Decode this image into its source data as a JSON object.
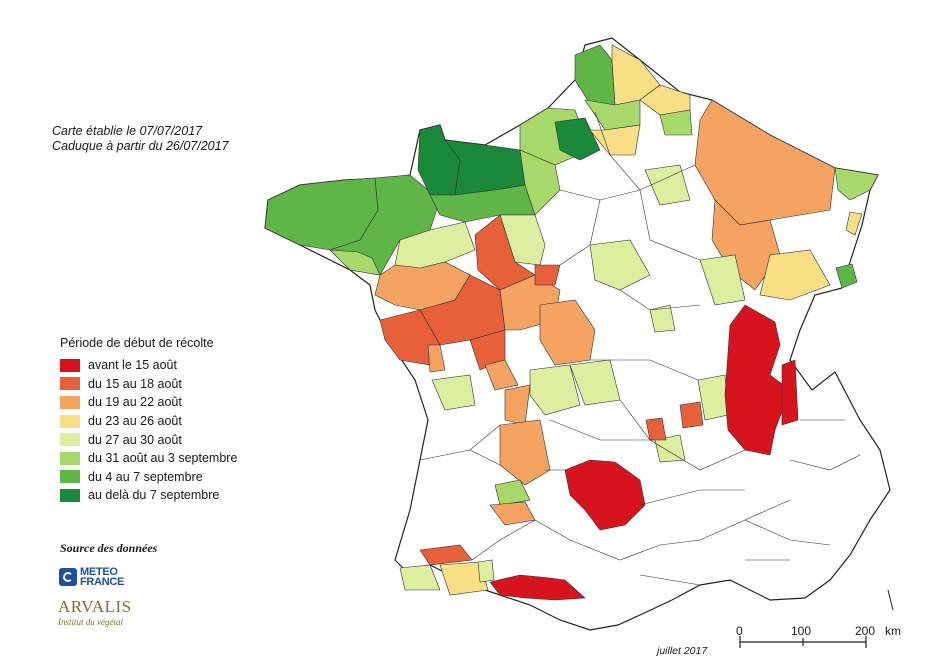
{
  "notes": {
    "line1": "Carte établie le 07/07/2017",
    "line2": "Caduque à partir du 26/07/2017"
  },
  "legend": {
    "title": "Période de début de récolte",
    "items": [
      {
        "label": "avant le 15 août",
        "color": "#d7141e"
      },
      {
        "label": "du 15 au 18 août",
        "color": "#e8603a"
      },
      {
        "label": "du 19 au 22 août",
        "color": "#f4a460"
      },
      {
        "label": "du 23 au 26 août",
        "color": "#f8df86"
      },
      {
        "label": "du 27 au 30 août",
        "color": "#dcef9f"
      },
      {
        "label": "du 31 août au 3 septembre",
        "color": "#a6d96a"
      },
      {
        "label": "du 4 au 7 septembre",
        "color": "#5fb546"
      },
      {
        "label": "au delà du 7 septembre",
        "color": "#1a8a3a"
      }
    ]
  },
  "source": {
    "title": "Source des données",
    "meteo_line1": "METEO",
    "meteo_line2": "FRANCE",
    "arvalis_name": "ARVALIS",
    "arvalis_sub": "Institut du végétal"
  },
  "date_label": "juillet 2017",
  "scale": {
    "labels": [
      "0",
      "100",
      "200"
    ],
    "unit": "km"
  }
}
